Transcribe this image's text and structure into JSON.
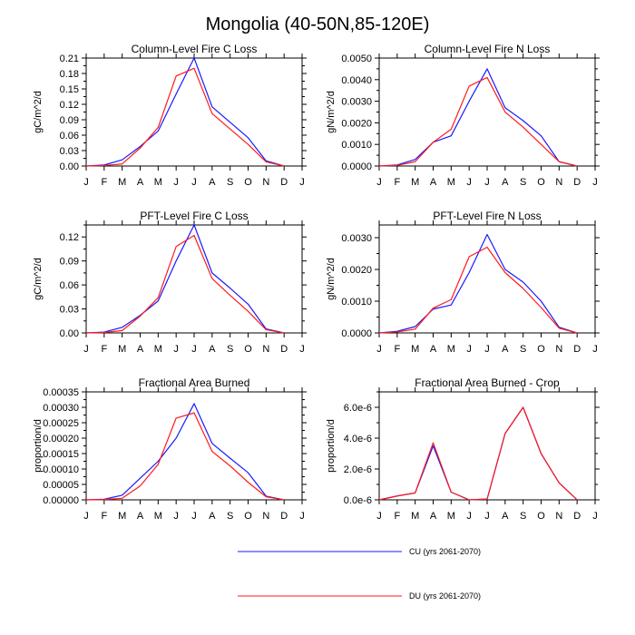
{
  "figure_title": "Mongolia (40-50N,85-120E)",
  "colors": {
    "CU": "#1a1aff",
    "DU": "#ff1a1a",
    "axis": "#000000",
    "background": "#ffffff"
  },
  "legend": {
    "items": [
      {
        "series": "CU",
        "label": "CU (yrs 2061-2070)"
      },
      {
        "series": "DU",
        "label": "DU (yrs 2061-2070)"
      }
    ]
  },
  "chart_data": [
    {
      "type": "line",
      "title": "Column-Level Fire C Loss",
      "ylabel": "gC/m^2/d",
      "xlabel": "",
      "categories": [
        "J",
        "F",
        "M",
        "A",
        "M",
        "J",
        "J",
        "A",
        "S",
        "O",
        "N",
        "D",
        "J"
      ],
      "x": [
        0,
        1,
        2,
        3,
        4,
        5,
        6,
        7,
        8,
        9,
        10,
        11,
        12
      ],
      "xlim": [
        0,
        12
      ],
      "ylim": [
        0,
        0.21
      ],
      "yticks": [
        0,
        0.03,
        0.06,
        0.09,
        0.12,
        0.15,
        0.18,
        0.21
      ],
      "ytick_labels": [
        "0.00",
        "0.03",
        "0.06",
        "0.09",
        "0.12",
        "0.15",
        "0.18",
        "0.21"
      ],
      "series": [
        {
          "name": "CU",
          "x": [
            0,
            1,
            2,
            3,
            4,
            5,
            6,
            7,
            8,
            9,
            10,
            11
          ],
          "values": [
            0,
            0.002,
            0.012,
            0.038,
            0.068,
            0.14,
            0.21,
            0.115,
            0.085,
            0.055,
            0.01,
            0
          ]
        },
        {
          "name": "DU",
          "x": [
            0,
            1,
            2,
            3,
            4,
            5,
            6,
            7,
            8,
            9,
            10,
            11
          ],
          "values": [
            0,
            0.001,
            0.004,
            0.035,
            0.075,
            0.175,
            0.19,
            0.102,
            0.072,
            0.042,
            0.008,
            0
          ]
        }
      ]
    },
    {
      "type": "line",
      "title": "Column-Level Fire N Loss",
      "ylabel": "gN/m^2/d",
      "xlabel": "",
      "categories": [
        "J",
        "F",
        "M",
        "A",
        "M",
        "J",
        "J",
        "A",
        "S",
        "O",
        "N",
        "D",
        "J"
      ],
      "x": [
        0,
        1,
        2,
        3,
        4,
        5,
        6,
        7,
        8,
        9,
        10,
        11,
        12
      ],
      "xlim": [
        0,
        12
      ],
      "ylim": [
        0,
        0.005
      ],
      "yticks": [
        0,
        0.001,
        0.002,
        0.003,
        0.004,
        0.005
      ],
      "ytick_labels": [
        "0.0000",
        "0.0010",
        "0.0020",
        "0.0030",
        "0.0040",
        "0.0050"
      ],
      "series": [
        {
          "name": "CU",
          "x": [
            0,
            1,
            2,
            3,
            4,
            5,
            6,
            7,
            8,
            9,
            10,
            11
          ],
          "values": [
            0,
            5e-05,
            0.0003,
            0.0011,
            0.0014,
            0.003,
            0.0045,
            0.0027,
            0.0021,
            0.0014,
            0.0002,
            0
          ]
        },
        {
          "name": "DU",
          "x": [
            0,
            1,
            2,
            3,
            4,
            5,
            6,
            7,
            8,
            9,
            10,
            11
          ],
          "values": [
            0,
            3e-05,
            0.0002,
            0.0011,
            0.0017,
            0.0037,
            0.0041,
            0.0025,
            0.0018,
            0.001,
            0.0002,
            0
          ]
        }
      ]
    },
    {
      "type": "line",
      "title": "PFT-Level Fire C Loss",
      "ylabel": "gC/m^2/d",
      "xlabel": "",
      "categories": [
        "J",
        "F",
        "M",
        "A",
        "M",
        "J",
        "J",
        "A",
        "S",
        "O",
        "N",
        "D",
        "J"
      ],
      "x": [
        0,
        1,
        2,
        3,
        4,
        5,
        6,
        7,
        8,
        9,
        10,
        11,
        12
      ],
      "xlim": [
        0,
        12
      ],
      "ylim": [
        0,
        0.135
      ],
      "yticks": [
        0,
        0.03,
        0.06,
        0.09,
        0.12
      ],
      "ytick_labels": [
        "0.00",
        "0.03",
        "0.06",
        "0.09",
        "0.12"
      ],
      "series": [
        {
          "name": "CU",
          "x": [
            0,
            1,
            2,
            3,
            4,
            5,
            6,
            7,
            8,
            9,
            10,
            11
          ],
          "values": [
            0,
            0.001,
            0.007,
            0.022,
            0.04,
            0.09,
            0.135,
            0.075,
            0.056,
            0.036,
            0.005,
            0
          ]
        },
        {
          "name": "DU",
          "x": [
            0,
            1,
            2,
            3,
            4,
            5,
            6,
            7,
            8,
            9,
            10,
            11
          ],
          "values": [
            0,
            0.0005,
            0.003,
            0.021,
            0.044,
            0.108,
            0.122,
            0.068,
            0.047,
            0.027,
            0.004,
            0
          ]
        }
      ]
    },
    {
      "type": "line",
      "title": "PFT-Level Fire N Loss",
      "ylabel": "gN/m^2/d",
      "xlabel": "",
      "categories": [
        "J",
        "F",
        "M",
        "A",
        "M",
        "J",
        "J",
        "A",
        "S",
        "O",
        "N",
        "D",
        "J"
      ],
      "x": [
        0,
        1,
        2,
        3,
        4,
        5,
        6,
        7,
        8,
        9,
        10,
        11,
        12
      ],
      "xlim": [
        0,
        12
      ],
      "ylim": [
        0,
        0.0034
      ],
      "yticks": [
        0,
        0.001,
        0.002,
        0.003
      ],
      "ytick_labels": [
        "0.0000",
        "0.0010",
        "0.0020",
        "0.0030"
      ],
      "series": [
        {
          "name": "CU",
          "x": [
            0,
            1,
            2,
            3,
            4,
            5,
            6,
            7,
            8,
            9,
            10,
            11
          ],
          "values": [
            0,
            5e-05,
            0.0002,
            0.00075,
            0.00088,
            0.0019,
            0.0031,
            0.002,
            0.0016,
            0.001,
            0.00018,
            0
          ]
        },
        {
          "name": "DU",
          "x": [
            0,
            1,
            2,
            3,
            4,
            5,
            6,
            7,
            8,
            9,
            10,
            11
          ],
          "values": [
            0,
            3e-05,
            0.00012,
            0.00078,
            0.00105,
            0.0024,
            0.0027,
            0.0019,
            0.0014,
            0.0008,
            0.00015,
            0
          ]
        }
      ]
    },
    {
      "type": "line",
      "title": "Fractional Area Burned",
      "ylabel": "proportion/d",
      "xlabel": "",
      "categories": [
        "J",
        "F",
        "M",
        "A",
        "M",
        "J",
        "J",
        "A",
        "S",
        "O",
        "N",
        "D",
        "J"
      ],
      "x": [
        0,
        1,
        2,
        3,
        4,
        5,
        6,
        7,
        8,
        9,
        10,
        11,
        12
      ],
      "xlim": [
        0,
        12
      ],
      "ylim": [
        0,
        0.00035
      ],
      "yticks": [
        0,
        5e-05,
        0.0001,
        0.00015,
        0.0002,
        0.00025,
        0.0003,
        0.00035
      ],
      "ytick_labels": [
        "0.00000",
        "0.00005",
        "0.00010",
        "0.00015",
        "0.00020",
        "0.00025",
        "0.00030",
        "0.00035"
      ],
      "series": [
        {
          "name": "CU",
          "x": [
            0,
            1,
            2,
            3,
            4,
            5,
            6,
            7,
            8,
            9,
            10,
            11
          ],
          "values": [
            0,
            2e-06,
            1.5e-05,
            7e-05,
            0.000125,
            0.0002,
            0.000312,
            0.000183,
            0.000135,
            8.8e-05,
            1.2e-05,
            0
          ]
        },
        {
          "name": "DU",
          "x": [
            0,
            1,
            2,
            3,
            4,
            5,
            6,
            7,
            8,
            9,
            10,
            11
          ],
          "values": [
            0,
            1e-06,
            5e-06,
            4.5e-05,
            0.000115,
            0.000265,
            0.000282,
            0.000157,
            0.00011,
            5.7e-05,
            1e-05,
            0
          ]
        }
      ]
    },
    {
      "type": "line",
      "title": "Fractional Area Burned - Crop",
      "ylabel": "proportion/d",
      "xlabel": "",
      "categories": [
        "J",
        "F",
        "M",
        "A",
        "M",
        "J",
        "J",
        "A",
        "S",
        "O",
        "N",
        "D",
        "J"
      ],
      "x": [
        0,
        1,
        2,
        3,
        4,
        5,
        6,
        7,
        8,
        9,
        10,
        11,
        12
      ],
      "xlim": [
        0,
        12
      ],
      "ylim": [
        0,
        7e-06
      ],
      "yticks": [
        0,
        2e-06,
        4e-06,
        6e-06
      ],
      "ytick_labels": [
        "0.0e-6",
        "2.0e-6",
        "4.0e-6",
        "6.0e-6"
      ],
      "series": [
        {
          "name": "CU",
          "x": [
            0,
            1,
            2,
            3,
            4,
            5,
            6,
            7,
            8,
            9,
            10,
            11
          ],
          "values": [
            0,
            2.5e-07,
            4.5e-07,
            3.5e-06,
            5e-07,
            0,
            5e-08,
            4.3e-06,
            6e-06,
            3e-06,
            1.1e-06,
            0
          ]
        },
        {
          "name": "DU",
          "x": [
            0,
            1,
            2,
            3,
            4,
            5,
            6,
            7,
            8,
            9,
            10,
            11
          ],
          "values": [
            0,
            2.5e-07,
            4.5e-07,
            3.7e-06,
            5e-07,
            0,
            5e-08,
            4.3e-06,
            6e-06,
            3e-06,
            1.1e-06,
            0
          ]
        }
      ]
    }
  ]
}
